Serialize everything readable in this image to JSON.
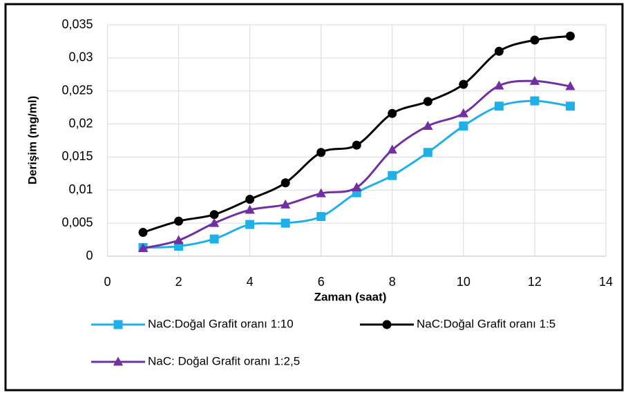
{
  "chart_data": {
    "type": "line",
    "x_label": "Zaman (saat)",
    "y_label": "Derişim (mg/ml)",
    "x": [
      1,
      2,
      3,
      4,
      5,
      6,
      7,
      8,
      9,
      10,
      11,
      12,
      13
    ],
    "series": [
      {
        "name": "NaC:Doğal Grafit oranı 1:10",
        "color": "#1fb0e8",
        "marker": "square",
        "values": [
          0.0013,
          0.0015,
          0.0026,
          0.0048,
          0.005,
          0.006,
          0.0096,
          0.0122,
          0.0157,
          0.0197,
          0.0227,
          0.0235,
          0.0227
        ]
      },
      {
        "name": "NaC:Doğal Grafit oranı 1:5",
        "color": "#000000",
        "marker": "circle",
        "values": [
          0.0036,
          0.0053,
          0.0063,
          0.0086,
          0.0111,
          0.0157,
          0.0168,
          0.0216,
          0.0234,
          0.026,
          0.031,
          0.0327,
          0.0333
        ]
      },
      {
        "name": "NaC: Doğal Grafit oranı 1:2,5",
        "color": "#7030a0",
        "marker": "triangle",
        "values": [
          0.0012,
          0.0024,
          0.005,
          0.007,
          0.0078,
          0.0095,
          0.0104,
          0.0161,
          0.0197,
          0.0216,
          0.0258,
          0.0265,
          0.0257
        ]
      }
    ],
    "xlim": [
      0,
      14
    ],
    "xticks": [
      0,
      2,
      4,
      6,
      8,
      10,
      12,
      14
    ],
    "ylim": [
      0,
      0.035
    ],
    "yticks": [
      0,
      {
        "value": 0.005,
        "label": "0,005"
      },
      {
        "value": 0.01,
        "label": "0,01"
      },
      {
        "value": 0.015,
        "label": "0,015"
      },
      {
        "value": 0.02,
        "label": "0,02"
      },
      {
        "value": 0.025,
        "label": "0,025"
      },
      {
        "value": 0.03,
        "label": "0,03"
      },
      {
        "value": 0.035,
        "label": "0,035"
      }
    ],
    "grid": true,
    "legend": "bottom",
    "smooth": true
  }
}
